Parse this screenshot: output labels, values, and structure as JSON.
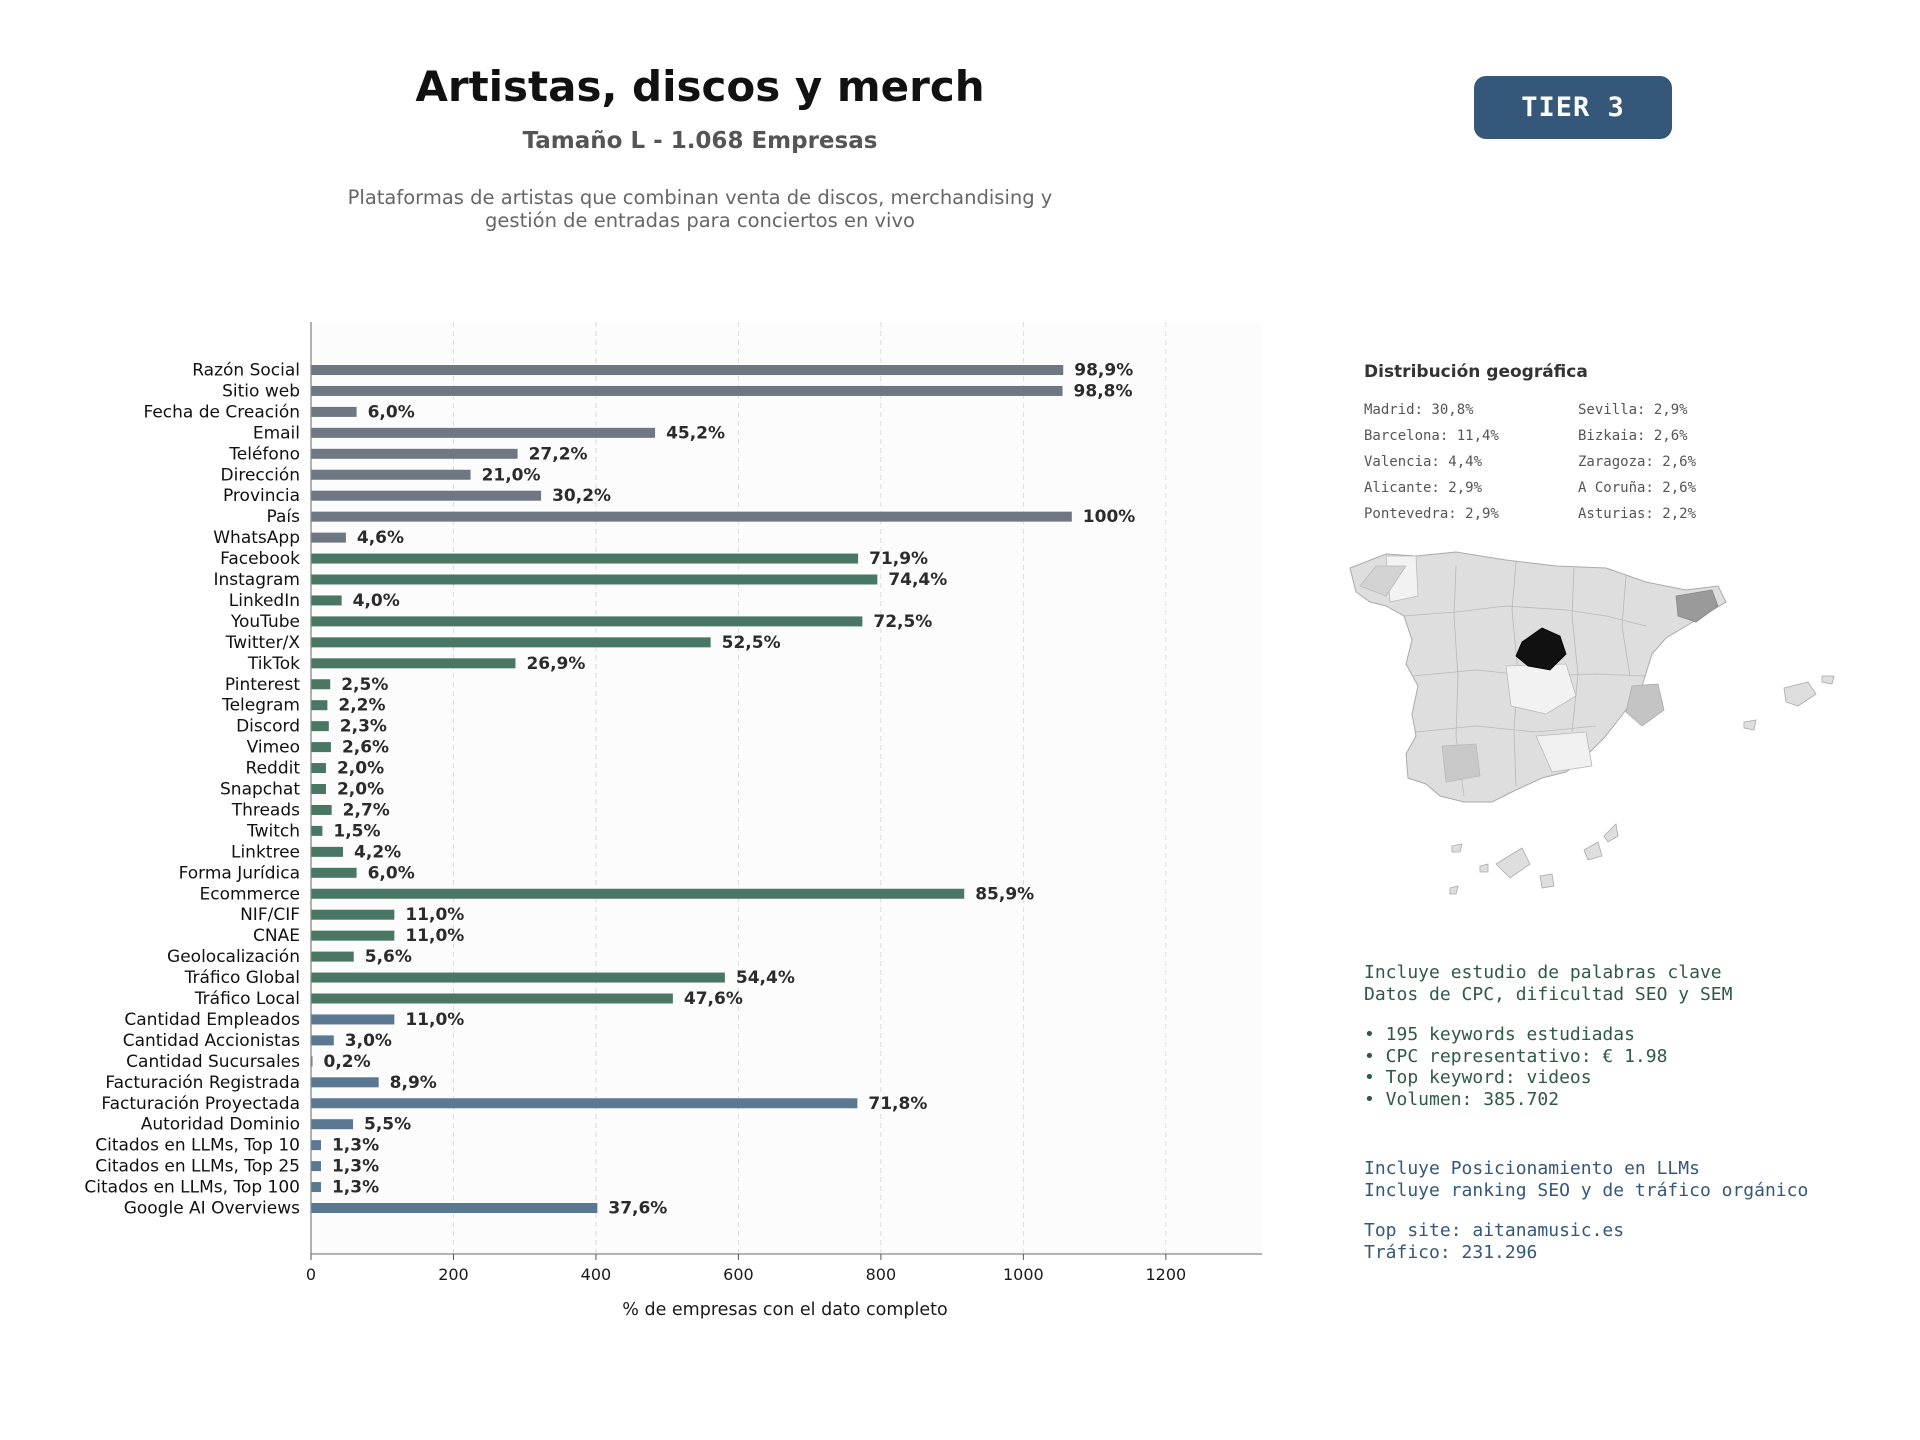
{
  "header": {
    "title": "Artistas, discos y merch",
    "subtitle": "Tamaño L - 1.068 Empresas",
    "description_line1": "Plataformas de artistas que combinan venta de discos, merchandising y",
    "description_line2": "gestión de entradas para conciertos en vivo",
    "tier": "TIER 3"
  },
  "colors": {
    "gray_bar": "#6f7782",
    "green_bar": "#4a7763",
    "blue_bar": "#5a7891",
    "plot_bg": "#fcfcfc",
    "badge": "#34577a"
  },
  "chart_data": {
    "type": "bar",
    "orientation": "horizontal",
    "xlabel": "% de empresas con el dato completo",
    "xlim": [
      0,
      1335
    ],
    "xticks": [
      0,
      200,
      400,
      600,
      800,
      1000,
      1200
    ],
    "grid": "vertical dashed",
    "categories": [
      "Razón Social",
      "Sitio web",
      "Fecha de Creación",
      "Email",
      "Teléfono",
      "Dirección",
      "Provincia",
      "País",
      "WhatsApp",
      "Facebook",
      "Instagram",
      "LinkedIn",
      "YouTube",
      "Twitter/X",
      "TikTok",
      "Pinterest",
      "Telegram",
      "Discord",
      "Vimeo",
      "Reddit",
      "Snapchat",
      "Threads",
      "Twitch",
      "Linktree",
      "Forma Jurídica",
      "Ecommerce",
      "NIF/CIF",
      "CNAE",
      "Geolocalización",
      "Tráfico Global",
      "Tráfico Local",
      "Cantidad Empleados",
      "Cantidad Accionistas",
      "Cantidad Sucursales",
      "Facturación Registrada",
      "Facturación Proyectada",
      "Autoridad Dominio",
      "Citados en LLMs, Top 10",
      "Citados en LLMs, Top 25",
      "Citados en LLMs, Top 100",
      "Google AI Overviews"
    ],
    "values": [
      1056,
      1055,
      64,
      483,
      290,
      224,
      323,
      1068,
      49,
      768,
      795,
      43,
      774,
      561,
      287,
      27,
      23,
      25,
      28,
      21,
      21,
      29,
      16,
      45,
      64,
      917,
      117,
      117,
      60,
      581,
      508,
      117,
      32,
      2,
      95,
      767,
      59,
      14,
      14,
      14,
      402
    ],
    "labels": [
      "98,9%",
      "98,8%",
      "6,0%",
      "45,2%",
      "27,2%",
      "21,0%",
      "30,2%",
      "100%",
      "4,6%",
      "71,9%",
      "74,4%",
      "4,0%",
      "72,5%",
      "52,5%",
      "26,9%",
      "2,5%",
      "2,2%",
      "2,3%",
      "2,6%",
      "2,0%",
      "2,0%",
      "2,7%",
      "1,5%",
      "4,2%",
      "6,0%",
      "85,9%",
      "11,0%",
      "11,0%",
      "5,6%",
      "54,4%",
      "47,6%",
      "11,0%",
      "3,0%",
      "0,2%",
      "8,9%",
      "71,8%",
      "5,5%",
      "1,3%",
      "1,3%",
      "1,3%",
      "37,6%"
    ],
    "groups": [
      "gray",
      "gray",
      "gray",
      "gray",
      "gray",
      "gray",
      "gray",
      "gray",
      "gray",
      "green",
      "green",
      "green",
      "green",
      "green",
      "green",
      "green",
      "green",
      "green",
      "green",
      "green",
      "green",
      "green",
      "green",
      "green",
      "green",
      "green",
      "green",
      "green",
      "green",
      "green",
      "green",
      "blue",
      "blue",
      "blue",
      "blue",
      "blue",
      "blue",
      "blue",
      "blue",
      "blue",
      "blue"
    ]
  },
  "geo": {
    "title": "Distribución geográfica",
    "items": [
      "Madrid: 30,8%",
      "Sevilla: 2,9%",
      "Barcelona: 11,4%",
      "Bizkaia: 2,6%",
      "Valencia: 4,4%",
      "Zaragoza: 2,6%",
      "Alicante: 2,9%",
      "A Coruña: 2,6%",
      "Pontevedra: 2,9%",
      "Asturias: 2,2%"
    ]
  },
  "seo": {
    "line1": "Incluye estudio de palabras clave",
    "line2": "Datos de CPC, dificultad SEO y SEM",
    "bullet1": "• 195 keywords estudiadas",
    "bullet2": "• CPC representativo: € 1.98",
    "bullet3": "• Top keyword: videos",
    "bullet4": "• Volumen: 385.702"
  },
  "llm": {
    "line1": "Incluye Posicionamiento en LLMs",
    "line2": "Incluye ranking SEO y de tráfico orgánico",
    "top_site": "Top site: aitanamusic.es",
    "traffic": "Tráfico: 231.296"
  }
}
